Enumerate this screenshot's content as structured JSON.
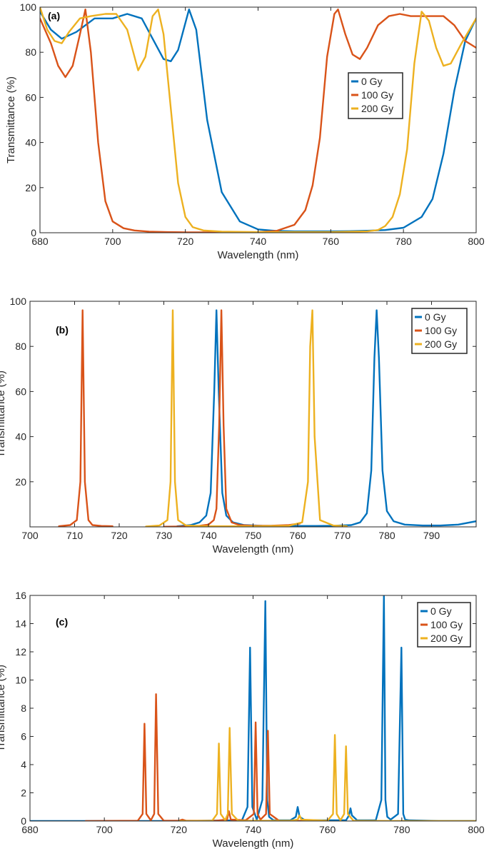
{
  "colors": {
    "0 Gy": "#0072BD",
    "100 Gy": "#D95319",
    "200 Gy": "#EDB120"
  },
  "chart_data": [
    {
      "type": "line",
      "panel_label": "(a)",
      "title": "",
      "xlabel": "Wavelength (nm)",
      "ylabel": "Transmittance (%)",
      "xlim": [
        680,
        800
      ],
      "ylim": [
        0,
        100
      ],
      "xticks": [
        680,
        700,
        720,
        740,
        760,
        780,
        800
      ],
      "yticks": [
        0,
        20,
        40,
        60,
        80,
        100
      ],
      "legend": "right",
      "series": [
        {
          "name": "0 Gy",
          "x": [
            680,
            683,
            686,
            690,
            695,
            700,
            704,
            708,
            711,
            714,
            716,
            718,
            720,
            721,
            723,
            726,
            730,
            735,
            740,
            745,
            750,
            755,
            760,
            765,
            770,
            775,
            780,
            785,
            788,
            791,
            794,
            797,
            800
          ],
          "y": [
            98,
            90,
            86,
            89,
            95,
            95,
            97,
            95,
            86,
            77,
            76,
            81,
            93,
            99,
            90,
            50,
            18,
            5,
            1.5,
            0.8,
            0.6,
            0.6,
            0.6,
            0.7,
            0.9,
            1.2,
            2.2,
            7,
            15,
            35,
            63,
            85,
            95
          ]
        },
        {
          "name": "100 Gy",
          "x": [
            680,
            683,
            685,
            687,
            689,
            691,
            692.5,
            694,
            696,
            698,
            700,
            703,
            706,
            710,
            715,
            720,
            730,
            740,
            745,
            750,
            753,
            755,
            757,
            759,
            761,
            762,
            764,
            766,
            768,
            770,
            773,
            776,
            779,
            782,
            785,
            788,
            791,
            794,
            797,
            800
          ],
          "y": [
            95,
            84,
            74,
            69,
            74,
            88,
            99,
            80,
            40,
            14,
            5,
            2,
            1,
            0.5,
            0.3,
            0.2,
            0.2,
            0.3,
            0.8,
            3.5,
            10,
            21,
            42,
            78,
            97,
            99,
            88,
            79,
            77,
            82,
            92,
            96,
            97,
            96,
            96,
            96,
            96,
            92,
            85,
            82
          ]
        },
        {
          "name": "200 Gy",
          "x": [
            680,
            682,
            684,
            686,
            688,
            691,
            694,
            698,
            701,
            704,
            706,
            707,
            709,
            711,
            712.5,
            714,
            716,
            718,
            720,
            722,
            725,
            730,
            740,
            750,
            760,
            770,
            773,
            775,
            777,
            779,
            781,
            783,
            785,
            787,
            789,
            791,
            793,
            796,
            800
          ],
          "y": [
            100,
            90,
            85,
            84,
            89,
            95,
            96,
            97,
            97,
            90,
            78,
            72,
            78,
            96,
            99,
            88,
            55,
            22,
            7,
            2.5,
            1,
            0.5,
            0.3,
            0.3,
            0.3,
            0.6,
            1.2,
            3,
            7,
            17,
            37,
            75,
            98,
            94,
            82,
            74,
            75,
            84,
            95
          ]
        }
      ]
    },
    {
      "type": "line",
      "panel_label": "(b)",
      "title": "",
      "xlabel": "Wavelength (nm)",
      "ylabel": "Transmittance (%)",
      "xlim": [
        700,
        800
      ],
      "ylim": [
        0,
        100
      ],
      "xticks": [
        700,
        710,
        720,
        730,
        740,
        750,
        760,
        770,
        780,
        790
      ],
      "yticks": [
        20,
        40,
        60,
        80,
        100
      ],
      "legend": "top-right",
      "series": [
        {
          "name": "0 Gy",
          "x": [
            733,
            736,
            738,
            739.5,
            740.5,
            741.3,
            741.8,
            742.3,
            743.1,
            744,
            745.5,
            748,
            752,
            756,
            760,
            764,
            768,
            772,
            774,
            775.5,
            776.5,
            777.2,
            777.7,
            778.2,
            779,
            780,
            781.5,
            784,
            788,
            792,
            796,
            800
          ],
          "y": [
            0.3,
            0.8,
            2,
            5,
            15,
            60,
            96,
            60,
            15,
            5,
            2,
            0.8,
            0.5,
            0.4,
            0.4,
            0.4,
            0.5,
            0.8,
            2,
            6,
            25,
            75,
            96,
            75,
            25,
            7,
            2.5,
            1,
            0.6,
            0.6,
            1,
            2.5
          ]
        },
        {
          "name": "100 Gy",
          "x": [
            706.5,
            709,
            710.5,
            711.3,
            711.8,
            712.3,
            713.1,
            714,
            716,
            718.5
          ],
          "y": [
            0.3,
            0.8,
            3,
            20,
            96,
            20,
            3,
            0.8,
            0.4,
            0.3
          ]
        },
        {
          "name": "100 Gy",
          "x": [
            730,
            735,
            738,
            740,
            741.2,
            741.8,
            742.4,
            742.9,
            743.4,
            744,
            745.2,
            747,
            750,
            754,
            758,
            760.5
          ],
          "y": [
            0.1,
            0.2,
            0.5,
            1,
            3,
            8,
            45,
            96,
            45,
            8,
            2,
            0.8,
            0.5,
            0.5,
            0.8,
            1.5
          ]
        },
        {
          "name": "200 Gy",
          "x": [
            726,
            729,
            730.8,
            731.5,
            732,
            732.5,
            733.2,
            735,
            740,
            750,
            758,
            761,
            762.3,
            762.8,
            763.3,
            763.8,
            765,
            768,
            771
          ],
          "y": [
            0.2,
            0.6,
            3,
            20,
            96,
            20,
            3,
            0.6,
            0.3,
            0.3,
            0.5,
            2,
            20,
            80,
            96,
            40,
            3,
            0.6,
            0.3
          ]
        }
      ]
    },
    {
      "type": "line",
      "panel_label": "(c)",
      "title": "",
      "xlabel": "Wavelength (nm)",
      "ylabel": "Transmittance (%)",
      "xlim": [
        680,
        800
      ],
      "ylim": [
        0,
        16
      ],
      "xticks": [
        680,
        700,
        720,
        740,
        760,
        780,
        800
      ],
      "yticks": [
        0,
        2,
        4,
        6,
        8,
        10,
        12,
        14,
        16
      ],
      "legend": "top-right",
      "series": [
        {
          "name": "0 Gy",
          "x": [
            680,
            720,
            737,
            738.5,
            739.2,
            739.8,
            741,
            742.5,
            743.3,
            743.8,
            744.3,
            745.5,
            750,
            751.5,
            752,
            752.5,
            754,
            765,
            765.8,
            766.2,
            766.6,
            768,
            773,
            774.5,
            775.2,
            775.6,
            776.1,
            777,
            779,
            779.9,
            780.4,
            780.9,
            782,
            790,
            800
          ],
          "y": [
            0,
            0,
            0.05,
            1,
            12.3,
            1,
            0.1,
            1.5,
            15.6,
            1.5,
            0.3,
            0.05,
            0.05,
            0.3,
            1,
            0.3,
            0.05,
            0.05,
            0.4,
            0.9,
            0.4,
            0.05,
            0.05,
            1.5,
            16,
            1.5,
            0.3,
            0.1,
            0.5,
            12.3,
            0.5,
            0.1,
            0.05,
            0,
            0
          ]
        },
        {
          "name": "100 Gy",
          "x": [
            695,
            709,
            710.3,
            710.8,
            711.3,
            712.5,
            713.4,
            713.9,
            714.5,
            716,
            720,
            721,
            722,
            730,
            733,
            733.5,
            734,
            738,
            740.2,
            740.7,
            741.2,
            742,
            743.5,
            744,
            744.5,
            747,
            760
          ],
          "y": [
            0,
            0.02,
            0.5,
            6.9,
            0.5,
            0.05,
            0.5,
            9,
            0.5,
            0.02,
            0.02,
            0.1,
            0.02,
            0.02,
            0.1,
            0.7,
            0.1,
            0.05,
            0.5,
            7,
            0.5,
            0.1,
            0.5,
            6.4,
            0.5,
            0.02,
            0
          ]
        },
        {
          "name": "200 Gy",
          "x": [
            720,
            729,
            730.3,
            730.8,
            731.3,
            732.5,
            733.2,
            733.7,
            734.3,
            736,
            750,
            752,
            752.5,
            753,
            760,
            761.5,
            762,
            762.5,
            763.5,
            764.5,
            765,
            765.5,
            767,
            780,
            790,
            800
          ],
          "y": [
            0,
            0.02,
            0.5,
            5.5,
            0.5,
            0.05,
            0.5,
            6.6,
            0.5,
            0.02,
            0.02,
            0.1,
            0.4,
            0.1,
            0.02,
            0.5,
            6.1,
            0.5,
            0.05,
            0.5,
            5.3,
            0.5,
            0.02,
            0,
            0,
            0
          ]
        }
      ]
    }
  ]
}
